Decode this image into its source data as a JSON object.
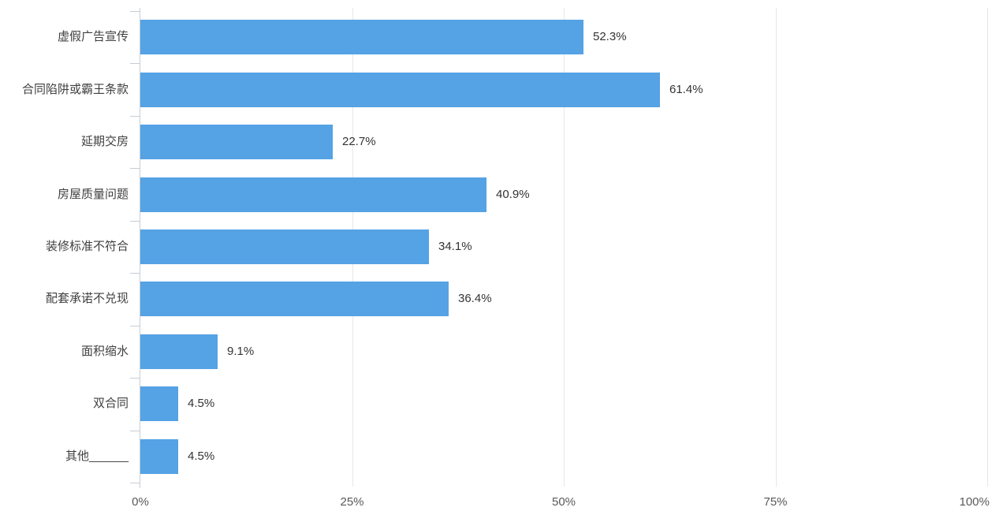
{
  "chart_data": {
    "type": "bar",
    "orientation": "horizontal",
    "title": "",
    "categories": [
      "虚假广告宣传",
      "合同陷阱或霸王条款",
      "延期交房",
      "房屋质量问题",
      "装修标准不符合",
      "配套承诺不兑现",
      "面积缩水",
      "双合同",
      "其他______"
    ],
    "values": [
      52.3,
      61.4,
      22.7,
      40.9,
      34.1,
      36.4,
      9.1,
      4.5,
      4.5
    ],
    "value_labels": [
      "52.3%",
      "61.4%",
      "22.7%",
      "40.9%",
      "34.1%",
      "36.4%",
      "9.1%",
      "4.5%",
      "4.5%"
    ],
    "xlim": [
      0,
      100
    ],
    "x_ticks": {
      "values": [
        0,
        25,
        50,
        75,
        100
      ],
      "labels": [
        "0%",
        "25%",
        "50%",
        "75%",
        "100%"
      ]
    },
    "grid": true,
    "legend": null,
    "colors": {
      "bar": "#55a2e5",
      "gridline": "#e4e7eb",
      "axis": "#c8cdd4",
      "category_label": "#3f3f3f",
      "value_label": "#333333",
      "tick_label": "#58595b",
      "background": "#ffffff"
    }
  }
}
